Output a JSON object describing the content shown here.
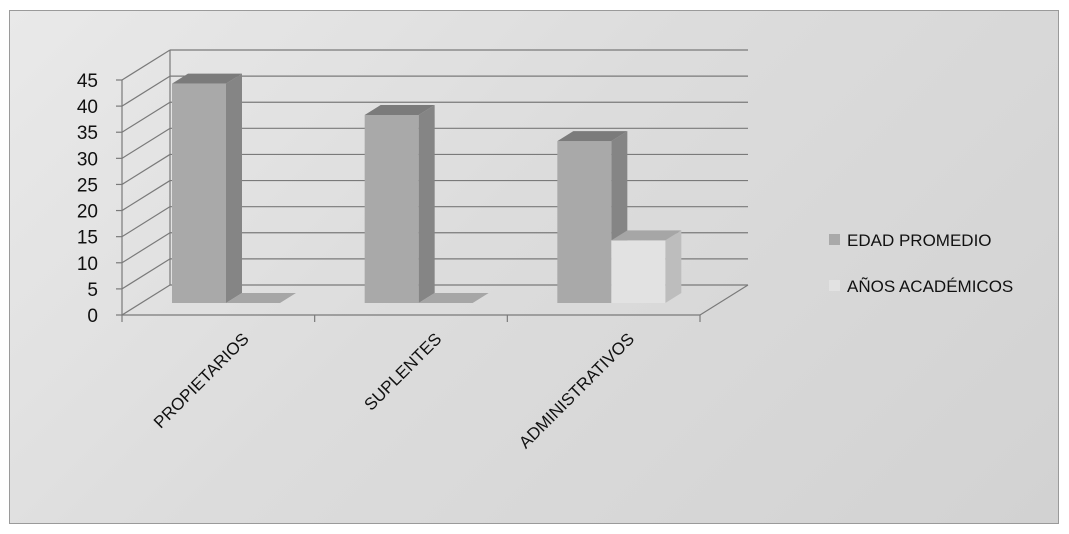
{
  "chart_data": {
    "type": "bar",
    "categories": [
      "PROPIETARIOS",
      "SUPLENTES",
      "ADMINISTRATIVOS"
    ],
    "series": [
      {
        "name": "EDAD PROMEDIO",
        "values": [
          42,
          36,
          31
        ]
      },
      {
        "name": "AÑOS ACADÉMICOS",
        "values": [
          0,
          0,
          12
        ]
      }
    ],
    "ylim": [
      0,
      45
    ],
    "yticks": [
      "0",
      "5",
      "10",
      "15",
      "20",
      "25",
      "30",
      "35",
      "40",
      "45"
    ],
    "title": "",
    "xlabel": "",
    "ylabel": "",
    "grid": true,
    "style": "3d-clustered-column",
    "legend": "right",
    "colors": {
      "series": [
        "#a9a9a9",
        "#e2e2e2"
      ],
      "side": [
        "#858585",
        "#bdbdbd"
      ],
      "top": [
        "#7b7b7b",
        "#a6a6a6"
      ],
      "grid": "#7a7a7a"
    }
  }
}
